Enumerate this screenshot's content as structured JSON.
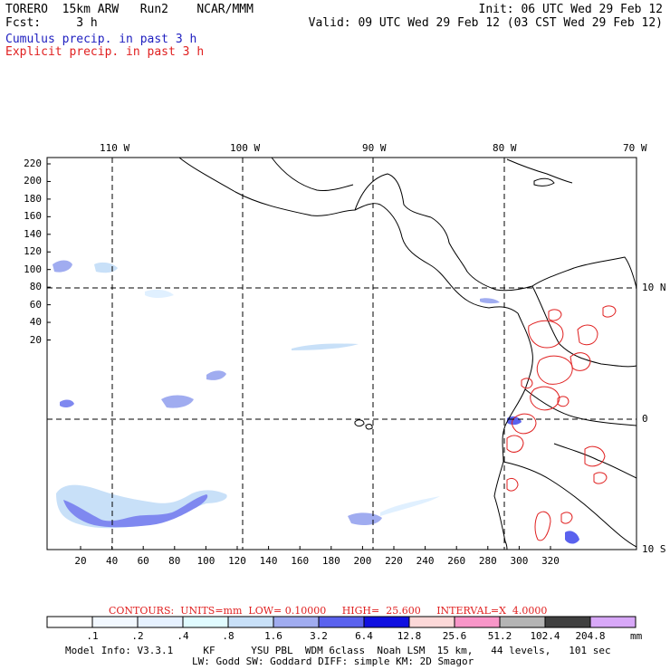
{
  "header": {
    "line1_left": "TORERO  15km ARW   Run2    NCAR/MMM",
    "line1_right": "Init: 06 UTC Wed 29 Feb 12",
    "line2_left": "Fcst:     3 h",
    "line2_right": "Valid: 09 UTC Wed 29 Feb 12 (03 CST Wed 29 Feb 12)",
    "legend_cumulus": "Cumulus precip. in past 3 h",
    "legend_explicit": "Explicit precip. in past 3 h",
    "colors": {
      "cumulus": "#2020c0",
      "explicit": "#e02020",
      "text": "#000000"
    }
  },
  "map": {
    "lon_labels": [
      "110 W",
      "100 W",
      "90 W",
      "80 W",
      "70 W"
    ],
    "lat_labels": [
      "10 N",
      "0",
      "10 S"
    ],
    "y_ticks": [
      "220",
      "200",
      "180",
      "160",
      "140",
      "120",
      "100",
      "80",
      "60",
      "40",
      "20"
    ],
    "x_ticks": [
      "20",
      "40",
      "60",
      "80",
      "100",
      "120",
      "140",
      "160",
      "180",
      "200",
      "220",
      "240",
      "260",
      "280",
      "300",
      "320"
    ]
  },
  "footer": {
    "contours_label": "CONTOURS:  UNITS=mm  LOW= 0.10000     HIGH=  25.600     INTERVAL=X  4.0000",
    "colorbar_labels": [
      ".1",
      ".2",
      ".4",
      ".8",
      "1.6",
      "3.2",
      "6.4",
      "12.8",
      "25.6",
      "51.2",
      "102.4",
      "204.8"
    ],
    "colorbar_unit": "mm",
    "colorbar_colors": [
      "#ffffff",
      "#f2f8ff",
      "#e6f1ff",
      "#e0fbff",
      "#c8e0f8",
      "#a0acf0",
      "#5a62ee",
      "#1010e0",
      "#fcd8d8",
      "#f896c8",
      "#b4b4b4",
      "#404040",
      "#d8a8f8"
    ],
    "model_info_1": "Model Info: V3.3.1     KF      YSU PBL  WDM 6class  Noah LSM  15 km,   44 levels,   101 sec",
    "model_info_2": "LW: Godd SW: Goddard DIFF: simple KM: 2D Smagor"
  }
}
